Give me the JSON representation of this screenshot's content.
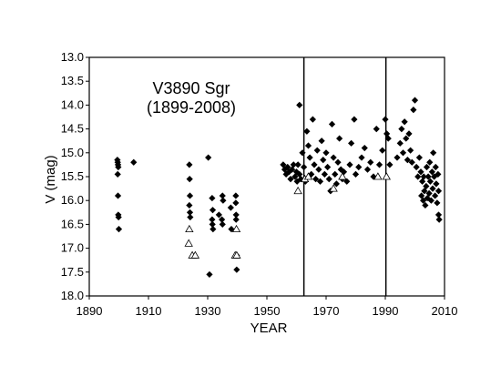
{
  "chart_data": {
    "type": "scatter",
    "title": "V3890 Sgr",
    "subtitle": "(1899-2008)",
    "xlabel": "YEAR",
    "ylabel": "V (mag)",
    "xlim": [
      1890,
      2010
    ],
    "ylim": [
      13.0,
      18.0
    ],
    "y_inverted": true,
    "grid": false,
    "x_ticks": [
      "1890",
      "1910",
      "1930",
      "1950",
      "1970",
      "1990",
      "2010"
    ],
    "y_ticks": [
      "13.0",
      "13.5",
      "14.0",
      "14.5",
      "15.0",
      "15.5",
      "16.0",
      "16.5",
      "17.0",
      "17.5",
      "18.0"
    ],
    "vertical_lines_x": [
      1962.5,
      1990.2
    ],
    "series": [
      {
        "marker": "filled-diamond",
        "color": "#000000",
        "points": [
          [
            1899.5,
            15.15
          ],
          [
            1899.6,
            15.2
          ],
          [
            1899.7,
            15.25
          ],
          [
            1899.8,
            15.3
          ],
          [
            1899.6,
            15.45
          ],
          [
            1899.7,
            15.9
          ],
          [
            1899.8,
            16.3
          ],
          [
            1899.9,
            16.35
          ],
          [
            1900.0,
            16.6
          ],
          [
            1905.0,
            15.2
          ],
          [
            1923.8,
            15.25
          ],
          [
            1923.9,
            15.55
          ],
          [
            1924.0,
            15.9
          ],
          [
            1923.8,
            16.1
          ],
          [
            1924.0,
            16.25
          ],
          [
            1924.1,
            16.35
          ],
          [
            1930.2,
            15.1
          ],
          [
            1930.6,
            17.55
          ],
          [
            1931.5,
            15.95
          ],
          [
            1931.7,
            16.2
          ],
          [
            1931.5,
            16.4
          ],
          [
            1931.6,
            16.5
          ],
          [
            1931.8,
            16.6
          ],
          [
            1933.8,
            16.3
          ],
          [
            1935.0,
            15.9
          ],
          [
            1935.2,
            16.0
          ],
          [
            1934.8,
            16.4
          ],
          [
            1935.0,
            16.5
          ],
          [
            1937.8,
            16.15
          ],
          [
            1938.0,
            16.6
          ],
          [
            1939.5,
            15.9
          ],
          [
            1939.5,
            16.05
          ],
          [
            1939.6,
            16.3
          ],
          [
            1939.6,
            16.4
          ],
          [
            1939.8,
            17.15
          ],
          [
            1939.8,
            17.45
          ],
          [
            1955.5,
            15.25
          ],
          [
            1956.0,
            15.35
          ],
          [
            1956.5,
            15.45
          ],
          [
            1957.0,
            15.3
          ],
          [
            1957.5,
            15.4
          ],
          [
            1958.0,
            15.55
          ],
          [
            1958.5,
            15.35
          ],
          [
            1959.0,
            15.25
          ],
          [
            1959.5,
            15.5
          ],
          [
            1960.0,
            15.4
          ],
          [
            1960.2,
            15.6
          ],
          [
            1960.5,
            15.25
          ],
          [
            1961.0,
            15.45
          ],
          [
            1961.5,
            15.55
          ],
          [
            1961.0,
            14.0
          ],
          [
            1962.0,
            15.0
          ],
          [
            1962.5,
            15.3
          ],
          [
            1963.0,
            15.6
          ],
          [
            1963.5,
            14.55
          ],
          [
            1964.0,
            14.85
          ],
          [
            1964.5,
            15.1
          ],
          [
            1965.0,
            15.45
          ],
          [
            1965.5,
            14.3
          ],
          [
            1966.0,
            15.25
          ],
          [
            1966.5,
            15.55
          ],
          [
            1967.0,
            14.95
          ],
          [
            1967.5,
            15.35
          ],
          [
            1968.0,
            15.6
          ],
          [
            1968.5,
            14.75
          ],
          [
            1969.0,
            15.15
          ],
          [
            1969.5,
            15.45
          ],
          [
            1970.0,
            15.0
          ],
          [
            1970.5,
            15.3
          ],
          [
            1971.0,
            15.55
          ],
          [
            1971.5,
            15.8
          ],
          [
            1972.0,
            14.4
          ],
          [
            1972.5,
            15.1
          ],
          [
            1973.0,
            15.45
          ],
          [
            1973.5,
            15.65
          ],
          [
            1974.0,
            15.2
          ],
          [
            1974.5,
            14.7
          ],
          [
            1975.0,
            15.35
          ],
          [
            1975.5,
            15.55
          ],
          [
            1976.0,
            15.4
          ],
          [
            1977.0,
            15.6
          ],
          [
            1978.0,
            15.25
          ],
          [
            1978.5,
            14.8
          ],
          [
            1979.5,
            14.3
          ],
          [
            1980.0,
            15.45
          ],
          [
            1981.0,
            15.3
          ],
          [
            1982.0,
            15.1
          ],
          [
            1983.0,
            14.9
          ],
          [
            1984.0,
            15.35
          ],
          [
            1985.0,
            15.2
          ],
          [
            1986.0,
            15.5
          ],
          [
            1987.0,
            14.5
          ],
          [
            1988.0,
            15.25
          ],
          [
            1989.0,
            14.95
          ],
          [
            1990.0,
            14.3
          ],
          [
            1990.5,
            14.6
          ],
          [
            1991.0,
            14.7
          ],
          [
            1991.5,
            15.25
          ],
          [
            1994.0,
            15.1
          ],
          [
            1995.0,
            14.8
          ],
          [
            1995.5,
            14.5
          ],
          [
            1996.0,
            15.0
          ],
          [
            1996.5,
            14.35
          ],
          [
            1997.0,
            14.7
          ],
          [
            1997.5,
            15.15
          ],
          [
            1998.0,
            14.6
          ],
          [
            1998.5,
            14.95
          ],
          [
            1999.0,
            15.2
          ],
          [
            1999.5,
            14.1
          ],
          [
            2000.0,
            13.9
          ],
          [
            2000.5,
            15.3
          ],
          [
            2001.0,
            15.5
          ],
          [
            2001.5,
            15.1
          ],
          [
            2002.0,
            15.4
          ],
          [
            2002.2,
            15.9
          ],
          [
            2002.5,
            15.6
          ],
          [
            2002.8,
            16.0
          ],
          [
            2003.0,
            15.5
          ],
          [
            2003.2,
            15.8
          ],
          [
            2003.5,
            16.1
          ],
          [
            2003.8,
            15.7
          ],
          [
            2004.0,
            15.3
          ],
          [
            2004.2,
            15.95
          ],
          [
            2004.5,
            15.5
          ],
          [
            2004.8,
            15.85
          ],
          [
            2005.0,
            15.2
          ],
          [
            2005.2,
            15.6
          ],
          [
            2005.5,
            16.0
          ],
          [
            2005.8,
            15.4
          ],
          [
            2006.0,
            15.75
          ],
          [
            2006.2,
            15.0
          ],
          [
            2006.5,
            15.5
          ],
          [
            2006.8,
            15.9
          ],
          [
            2007.0,
            15.3
          ],
          [
            2007.2,
            15.65
          ],
          [
            2007.5,
            16.05
          ],
          [
            2007.8,
            15.45
          ],
          [
            2008.0,
            15.8
          ],
          [
            2008.0,
            16.3
          ],
          [
            2008.2,
            16.4
          ]
        ]
      },
      {
        "marker": "open-triangle",
        "color": "#000000",
        "points": [
          [
            1923.8,
            16.6
          ],
          [
            1923.6,
            16.9
          ],
          [
            1924.8,
            17.15
          ],
          [
            1925.8,
            17.15
          ],
          [
            1939.7,
            16.6
          ],
          [
            1939.3,
            17.15
          ],
          [
            1939.8,
            17.15
          ],
          [
            1960.5,
            15.8
          ],
          [
            1962.8,
            15.55
          ],
          [
            1964.0,
            15.5
          ],
          [
            1972.5,
            15.75
          ],
          [
            1975.5,
            15.5
          ],
          [
            1987.5,
            15.5
          ],
          [
            1990.4,
            15.5
          ]
        ]
      }
    ]
  }
}
